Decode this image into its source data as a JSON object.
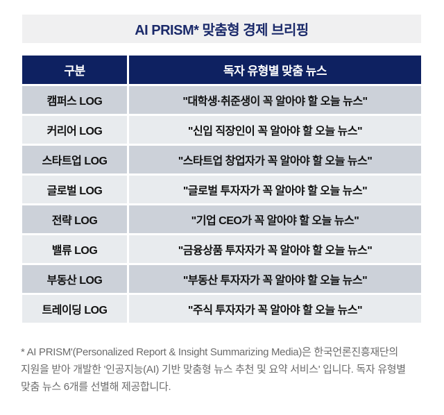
{
  "title": "AI PRISM* 맞춤형 경제 브리핑",
  "table": {
    "headers": {
      "category": "구분",
      "news": "독자 유형별 맞춤 뉴스"
    },
    "rows": [
      {
        "category": "캠퍼스 LOG",
        "news": "\"대학생·취준생이 꼭 알아야 할 오늘 뉴스\""
      },
      {
        "category": "커리어 LOG",
        "news": "\"신입 직장인이 꼭 알아야 할 오늘 뉴스\""
      },
      {
        "category": "스타트업 LOG",
        "news": "\"스타트업 창업자가 꼭 알아야 할 오늘 뉴스\""
      },
      {
        "category": "글로벌 LOG",
        "news": "\"글로벌 투자자가 꼭 알아야 할 오늘 뉴스\""
      },
      {
        "category": "전략 LOG",
        "news": "\"기업 CEO가 꼭 알아야 할 오늘 뉴스\""
      },
      {
        "category": "밸류 LOG",
        "news": "\"금융상품 투자자가 꼭 알아야 할 오늘 뉴스\""
      },
      {
        "category": "부동산 LOG",
        "news": "\"부동산 투자자가 꼭 알아야 할 오늘 뉴스\""
      },
      {
        "category": "트레이딩 LOG",
        "news": "\"주식 투자자가 꼭 알아야 할 오늘 뉴스\""
      }
    ]
  },
  "footnote": "* AI PRISM'(Personalized Report & Insight Summarizing Media)은 한국언론진흥재단의 지원을 받아 개발한 '인공지능(AI) 기반 맞춤형 뉴스 추천 및 요약 서비스' 입니다. 독자 유형별 맞춤 뉴스 6개를 선별해 제공합니다.",
  "colors": {
    "header_navy": "#0e2161",
    "title_text_navy": "#1b2a6a",
    "title_bar_bg": "#f0f0f1",
    "row_odd_bg": "#ccd1d9",
    "row_even_bg": "#e8ebee",
    "cell_text": "#111111",
    "footnote_text": "#6b6b6b"
  }
}
